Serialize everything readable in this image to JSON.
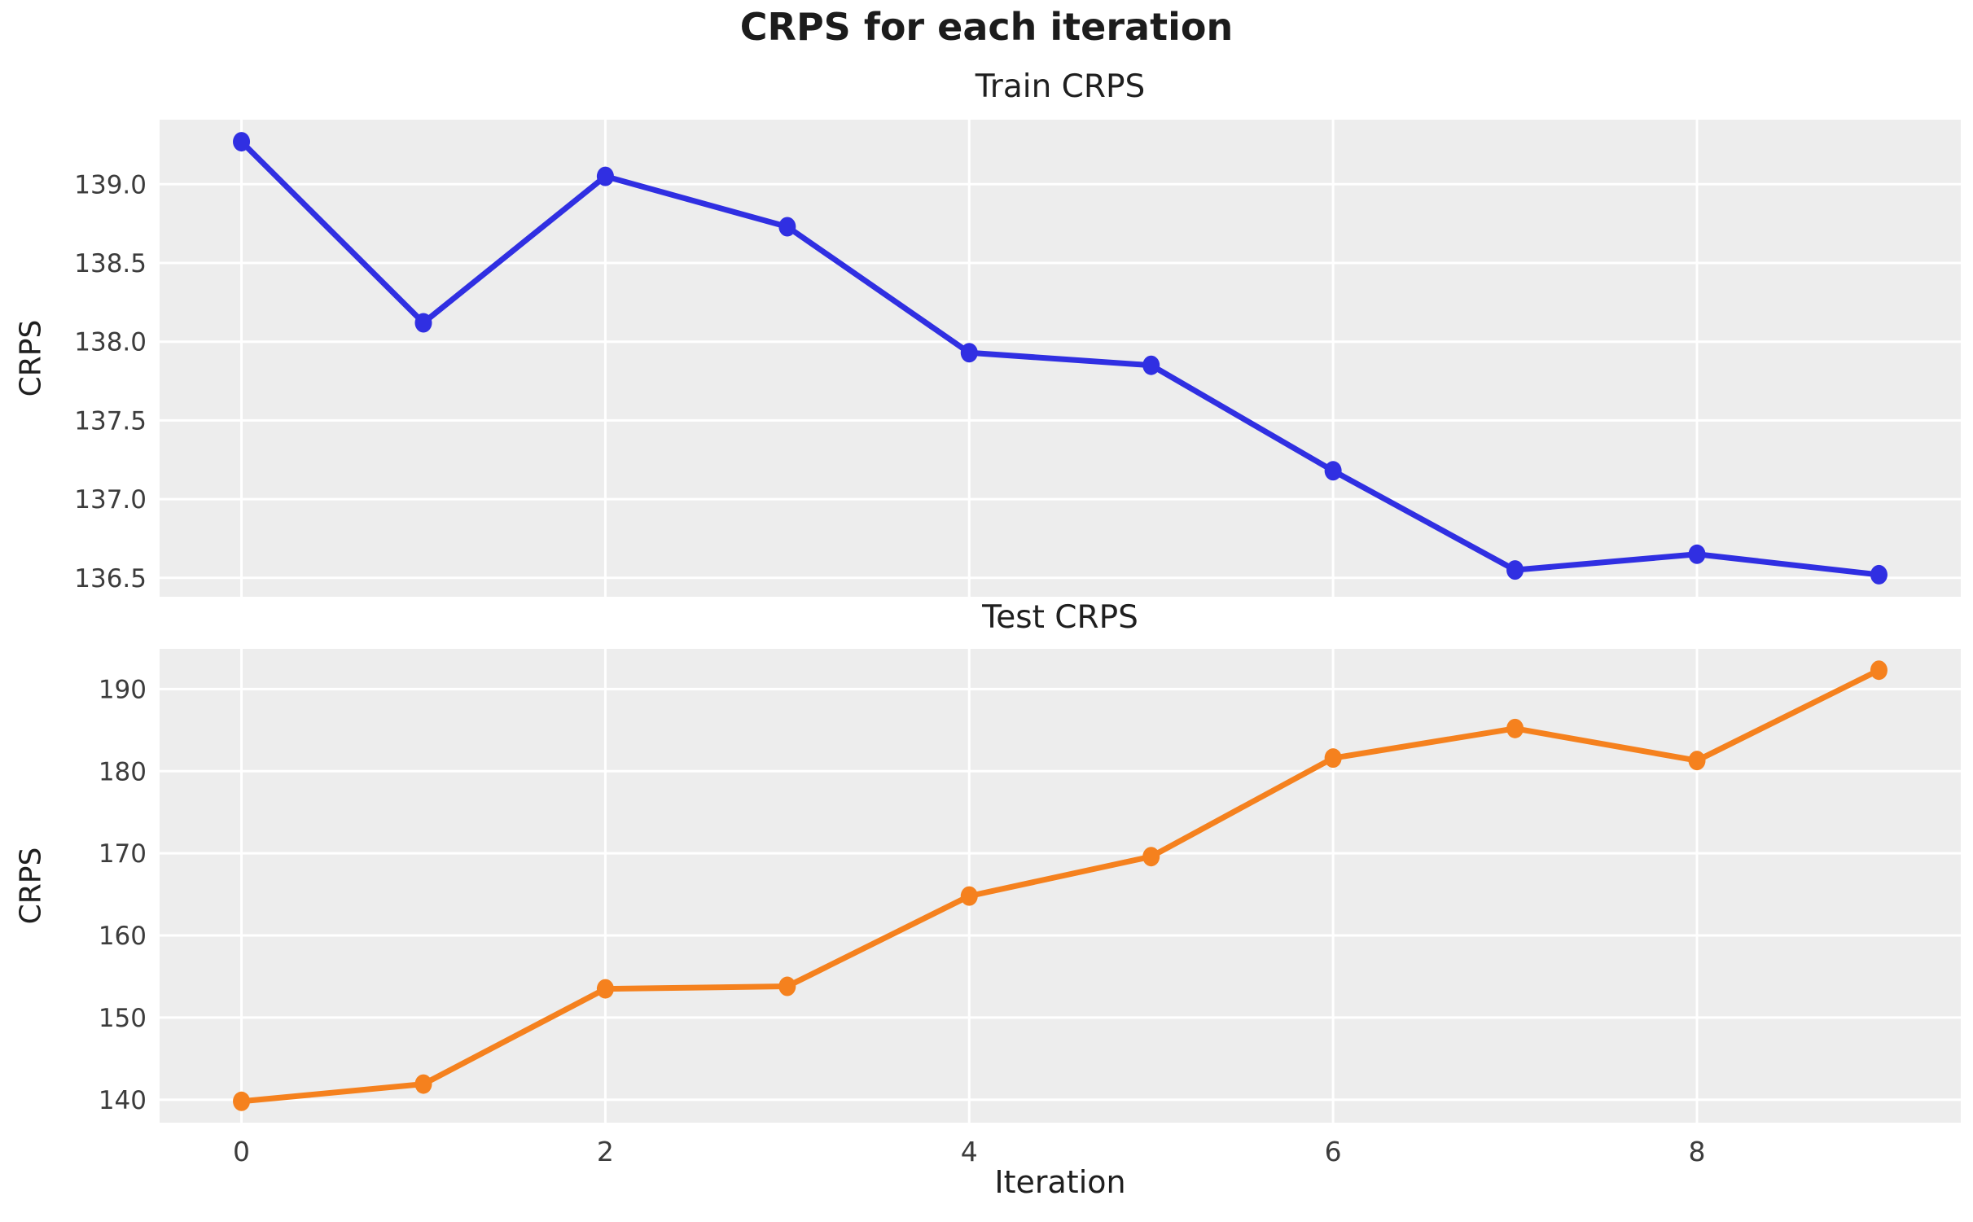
{
  "page": {
    "title": "CRPS for each iteration"
  },
  "colors": {
    "figure_bg": "#ffffff",
    "plot_bg": "#ededed",
    "grid": "#ffffff",
    "tick_label": "#3c3c3c",
    "text": "#1f1f1f",
    "train_line": "#302fe2",
    "test_line": "#f5811e"
  },
  "chart_data": [
    {
      "type": "line",
      "title": "Train CRPS",
      "ylabel": "CRPS",
      "xlabel": "",
      "legend": "none",
      "grid": "on",
      "marker": "circle",
      "x": [
        0,
        1,
        2,
        3,
        4,
        5,
        6,
        7,
        8,
        9
      ],
      "series": [
        {
          "name": "Train CRPS",
          "color_key": "train_line",
          "values": [
            139.27,
            138.12,
            139.05,
            138.73,
            137.93,
            137.85,
            137.18,
            136.55,
            136.65,
            136.52
          ]
        }
      ],
      "xlim": [
        -0.45,
        9.45
      ],
      "ylim": [
        136.38,
        139.41
      ],
      "xticks": [
        0,
        2,
        4,
        6,
        8
      ],
      "xtick_labels": [],
      "yticks": [
        136.5,
        137.0,
        137.5,
        138.0,
        138.5,
        139.0
      ],
      "ytick_labels": [
        "136.5",
        "137.0",
        "137.5",
        "138.0",
        "138.5",
        "139.0"
      ]
    },
    {
      "type": "line",
      "title": "Test CRPS",
      "ylabel": "CRPS",
      "xlabel": "Iteration",
      "legend": "none",
      "grid": "on",
      "marker": "circle",
      "x": [
        0,
        1,
        2,
        3,
        4,
        5,
        6,
        7,
        8,
        9
      ],
      "series": [
        {
          "name": "Test CRPS",
          "color_key": "test_line",
          "values": [
            139.8,
            141.9,
            153.5,
            153.8,
            164.8,
            169.6,
            181.6,
            185.2,
            181.3,
            192.3
          ]
        }
      ],
      "xlim": [
        -0.45,
        9.45
      ],
      "ylim": [
        137.2,
        194.9
      ],
      "xticks": [
        0,
        2,
        4,
        6,
        8
      ],
      "xtick_labels": [
        "0",
        "2",
        "4",
        "6",
        "8"
      ],
      "yticks": [
        140,
        150,
        160,
        170,
        180,
        190
      ],
      "ytick_labels": [
        "140",
        "150",
        "160",
        "170",
        "180",
        "190"
      ]
    }
  ]
}
